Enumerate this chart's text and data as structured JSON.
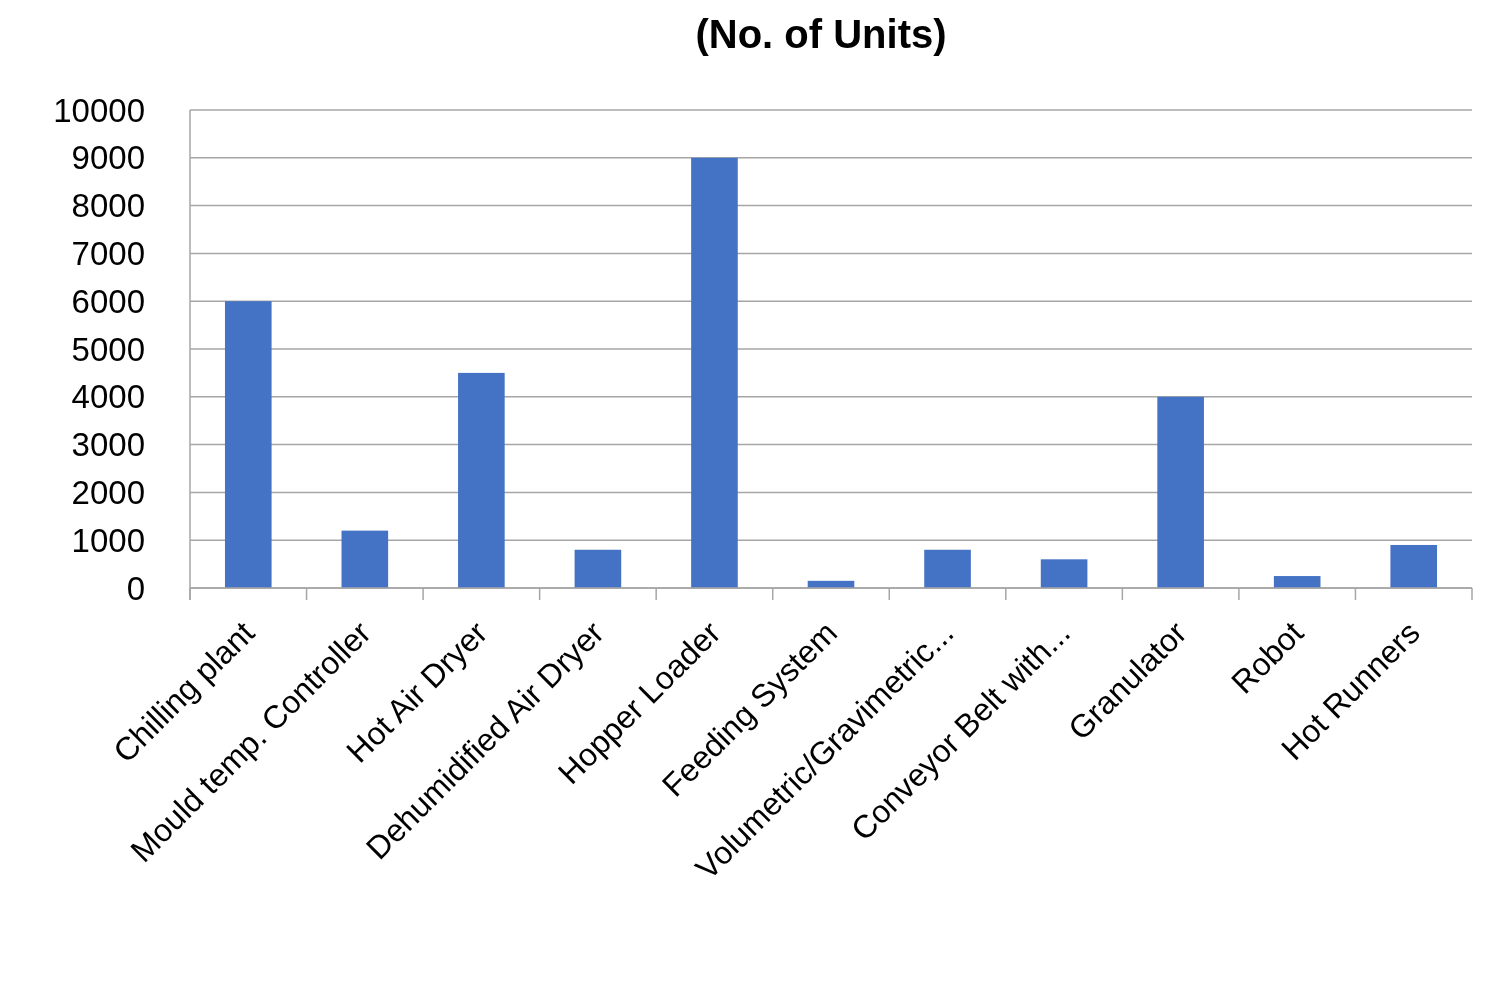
{
  "chart_data": {
    "type": "bar",
    "title": "(No. of Units)",
    "categories": [
      "Chilling plant",
      "Mould temp. Controller",
      "Hot Air Dryer",
      "Dehumidified Air Dryer",
      "Hopper Loader",
      "Feeding System",
      "Volumetric/Gravimetric...",
      "Conveyor Belt with...",
      "Granulator",
      "Robot",
      "Hot Runners"
    ],
    "values": [
      6000,
      1200,
      4500,
      800,
      9000,
      150,
      800,
      600,
      4000,
      250,
      900
    ],
    "color": "#4472c4",
    "ylim": [
      0,
      10000
    ],
    "yticks": [
      0,
      1000,
      2000,
      3000,
      4000,
      5000,
      6000,
      7000,
      8000,
      9000,
      10000
    ],
    "grid": "y"
  }
}
